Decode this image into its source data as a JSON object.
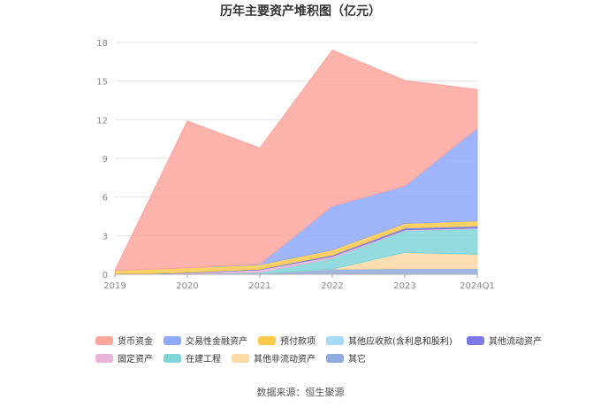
{
  "chart_data": {
    "type": "area",
    "stacked": true,
    "title": "历年主要资产堆积图（亿元）",
    "source_text": "数据来源：恒生聚源",
    "xlabel": "",
    "ylabel": "",
    "categories": [
      "2019",
      "2020",
      "2021",
      "2022",
      "2023",
      "2024Q1"
    ],
    "ylim": [
      0,
      18
    ],
    "yticks": [
      0,
      3,
      6,
      9,
      12,
      15,
      18
    ],
    "grid": true,
    "legend_position": "bottom",
    "series": [
      {
        "name": "其它",
        "color": "#8faadc",
        "values": [
          0.0,
          0.05,
          0.05,
          0.4,
          0.45,
          0.45
        ]
      },
      {
        "name": "其他非流动资产",
        "color": "#fdd9a6",
        "values": [
          0.0,
          0.0,
          0.0,
          0.0,
          1.25,
          1.1
        ]
      },
      {
        "name": "在建工程",
        "color": "#80d5d8",
        "values": [
          0.0,
          0.0,
          0.1,
          0.85,
          1.7,
          2.0
        ]
      },
      {
        "name": "固定资产",
        "color": "#e8b4d8",
        "values": [
          0.0,
          0.05,
          0.2,
          0.15,
          0.05,
          0.05
        ]
      },
      {
        "name": "其他流动资产",
        "color": "#7a7ae8",
        "values": [
          0.0,
          0.05,
          0.05,
          0.1,
          0.15,
          0.15
        ]
      },
      {
        "name": "其他应收款(含利息和股利)",
        "color": "#a6dbf7",
        "values": [
          0.0,
          0.0,
          0.0,
          0.0,
          0.0,
          0.0
        ]
      },
      {
        "name": "预付款项",
        "color": "#fdc94b",
        "values": [
          0.3,
          0.35,
          0.35,
          0.4,
          0.35,
          0.4
        ]
      },
      {
        "name": "交易性金融资产",
        "color": "#8fa9fb",
        "values": [
          0.0,
          0.0,
          0.05,
          3.4,
          2.9,
          7.2
        ]
      },
      {
        "name": "货币资金",
        "color": "#fca69c",
        "values": [
          0.0,
          11.4,
          9.0,
          12.1,
          8.2,
          3.0
        ]
      }
    ],
    "legend_order": [
      "货币资金",
      "交易性金融资产",
      "预付款项",
      "其他应收款(含利息和股利)",
      "其他流动资产",
      "固定资产",
      "在建工程",
      "其他非流动资产",
      "其它"
    ]
  }
}
